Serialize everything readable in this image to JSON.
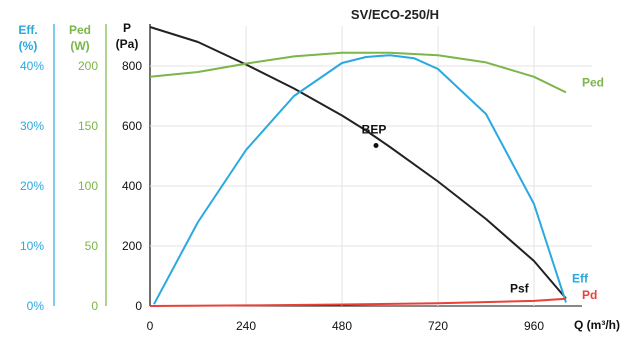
{
  "chart_data": {
    "type": "line",
    "title": "SV/ECO-250/H",
    "xlabel": "Q (m³/h)",
    "xlim": [
      0,
      1080
    ],
    "x_ticks": [
      "0",
      "240",
      "480",
      "720",
      "960"
    ],
    "grid": true,
    "axes": {
      "eff": {
        "label_line1": "Eff.",
        "label_line2": "(%)",
        "ylim": [
          0,
          45
        ],
        "ticks": [
          "0%",
          "10%",
          "20%",
          "30%",
          "40%"
        ],
        "color": "#29a9e0"
      },
      "ped": {
        "label_line1": "Ped",
        "label_line2": "(W)",
        "ylim": [
          0,
          225
        ],
        "ticks": [
          "0",
          "50",
          "100",
          "150",
          "200"
        ],
        "color": "#7ab648"
      },
      "p": {
        "label_line1": "P",
        "label_line2": "(Pa)",
        "ylim": [
          0,
          900
        ],
        "ticks": [
          "0",
          "200",
          "400",
          "600",
          "800"
        ],
        "color": "#111111"
      }
    },
    "series": [
      {
        "name": "Psf",
        "axis": "p",
        "color": "#222222",
        "x": [
          0,
          120,
          240,
          360,
          480,
          540,
          600,
          720,
          840,
          960,
          1040
        ],
        "y": [
          930,
          880,
          805,
          725,
          635,
          585,
          530,
          415,
          290,
          150,
          25
        ]
      },
      {
        "name": "Ped",
        "axis": "ped",
        "color": "#7ab648",
        "x": [
          0,
          120,
          240,
          360,
          480,
          600,
          720,
          840,
          960,
          1040
        ],
        "y": [
          191,
          195,
          202,
          208,
          211,
          211,
          209,
          203,
          191,
          178
        ]
      },
      {
        "name": "Eff",
        "axis": "eff",
        "color": "#29a9e0",
        "x": [
          10,
          120,
          240,
          360,
          480,
          540,
          600,
          660,
          720,
          840,
          960,
          1040
        ],
        "y": [
          0.3,
          14,
          26,
          35,
          40.5,
          41.5,
          41.8,
          41.3,
          39.5,
          32,
          17,
          0.6
        ]
      },
      {
        "name": "Pd",
        "axis": "p",
        "color": "#e8413a",
        "x": [
          0,
          240,
          480,
          720,
          960,
          1040
        ],
        "y": [
          0,
          2,
          5,
          9,
          17,
          24
        ]
      }
    ],
    "annotations": [
      {
        "text": "BEP",
        "x": 565,
        "y": 535
      }
    ]
  }
}
